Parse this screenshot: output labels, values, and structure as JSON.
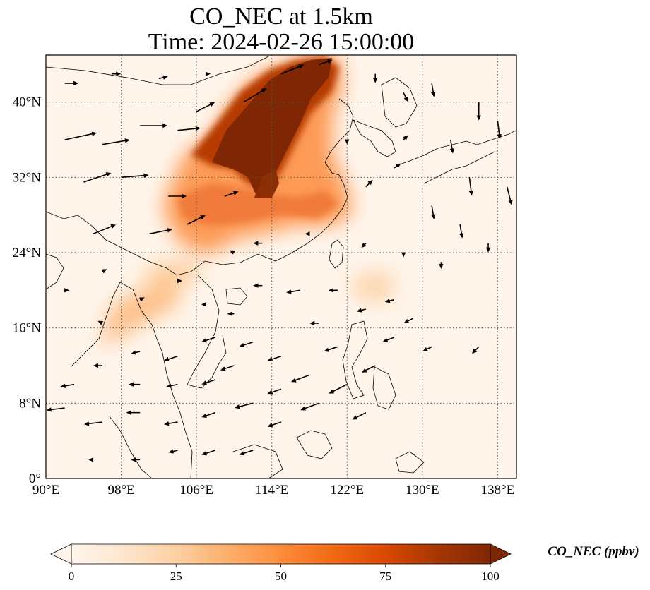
{
  "title": {
    "line1": "CO_NEC at 1.5km",
    "line2": "Time: 2024-02-26 15:00:00"
  },
  "map": {
    "extent": {
      "lon": [
        90,
        140
      ],
      "lat": [
        0,
        45
      ]
    },
    "lon_ticks": [
      {
        "value": 90,
        "label": "90°E"
      },
      {
        "value": 98,
        "label": "98°E"
      },
      {
        "value": 106,
        "label": "106°E"
      },
      {
        "value": 114,
        "label": "114°E"
      },
      {
        "value": 122,
        "label": "122°E"
      },
      {
        "value": 130,
        "label": "130°E"
      },
      {
        "value": 138,
        "label": "138°E"
      }
    ],
    "lat_ticks": [
      {
        "value": 0,
        "label": "0°"
      },
      {
        "value": 8,
        "label": "8°N"
      },
      {
        "value": 16,
        "label": "16°N"
      },
      {
        "value": 24,
        "label": "24°N"
      },
      {
        "value": 32,
        "label": "32°N"
      },
      {
        "value": 40,
        "label": "40°N"
      }
    ],
    "gridlines": true,
    "background_color": "#fff5eb",
    "line_color": "#000000"
  },
  "colorbar": {
    "label": "CO_NEC (ppbv)",
    "min": 0,
    "max": 100,
    "ticks": [
      0,
      25,
      50,
      75,
      100
    ],
    "extend": "both",
    "colormap": [
      "#fff5eb",
      "#fee6ce",
      "#fdd0a2",
      "#fdae6b",
      "#fd8d3c",
      "#f16913",
      "#d94801",
      "#a63603",
      "#7f2704"
    ]
  },
  "chart_data": {
    "type": "heatmap",
    "variable": "CO_NEC",
    "units": "ppbv",
    "concentration_regions": [
      {
        "lon": 115.5,
        "lat": 37.5,
        "value": 100
      },
      {
        "lon": 113.0,
        "lat": 34.5,
        "value": 100
      },
      {
        "lon": 117.5,
        "lat": 42.0,
        "value": 95
      },
      {
        "lon": 111.0,
        "lat": 37.0,
        "value": 90
      },
      {
        "lon": 116.0,
        "lat": 32.0,
        "value": 75
      },
      {
        "lon": 109.0,
        "lat": 31.0,
        "value": 50
      },
      {
        "lon": 114.0,
        "lat": 28.5,
        "value": 40
      },
      {
        "lon": 121.0,
        "lat": 30.0,
        "value": 30
      },
      {
        "lon": 106.0,
        "lat": 29.0,
        "value": 35
      },
      {
        "lon": 105.0,
        "lat": 24.0,
        "value": 18
      },
      {
        "lon": 96.0,
        "lat": 16.0,
        "value": 15
      },
      {
        "lon": 126.0,
        "lat": 21.5,
        "value": 12
      },
      {
        "lon": 100.0,
        "lat": 36.0,
        "value": 8
      },
      {
        "lon": 102.0,
        "lat": 19.0,
        "value": 10
      }
    ],
    "wind_vectors": [
      {
        "lon": 92,
        "lat": 36,
        "u": 7,
        "v": 1.5
      },
      {
        "lon": 96,
        "lat": 35.5,
        "u": 6,
        "v": 1
      },
      {
        "lon": 100,
        "lat": 37.5,
        "u": 6,
        "v": 0
      },
      {
        "lon": 104,
        "lat": 37,
        "u": 5,
        "v": 0.5
      },
      {
        "lon": 94,
        "lat": 31.5,
        "u": 6,
        "v": 2
      },
      {
        "lon": 98,
        "lat": 32,
        "u": 6,
        "v": 0.5
      },
      {
        "lon": 103,
        "lat": 30,
        "u": 4,
        "v": 0
      },
      {
        "lon": 95,
        "lat": 26,
        "u": 5,
        "v": 2
      },
      {
        "lon": 101,
        "lat": 26,
        "u": 5,
        "v": 1
      },
      {
        "lon": 105,
        "lat": 27,
        "u": 4,
        "v": 2
      },
      {
        "lon": 109,
        "lat": 30,
        "u": 3,
        "v": 1
      },
      {
        "lon": 106,
        "lat": 39,
        "u": 4,
        "v": 2
      },
      {
        "lon": 111,
        "lat": 40,
        "u": 5,
        "v": 3
      },
      {
        "lon": 115,
        "lat": 43,
        "u": 5,
        "v": 2
      },
      {
        "lon": 119,
        "lat": 44,
        "u": 3,
        "v": 1
      },
      {
        "lon": 125,
        "lat": 43,
        "u": 0,
        "v": -2
      },
      {
        "lon": 128,
        "lat": 41,
        "u": 1,
        "v": -2
      },
      {
        "lon": 131,
        "lat": 42,
        "u": 0.5,
        "v": -3
      },
      {
        "lon": 136,
        "lat": 40,
        "u": 0,
        "v": -4
      },
      {
        "lon": 138,
        "lat": 38,
        "u": 0.5,
        "v": -4
      },
      {
        "lon": 133,
        "lat": 36,
        "u": 0.5,
        "v": -3
      },
      {
        "lon": 135,
        "lat": 32,
        "u": 0.5,
        "v": -4
      },
      {
        "lon": 139,
        "lat": 31,
        "u": 1,
        "v": -4
      },
      {
        "lon": 131,
        "lat": 29,
        "u": 0.5,
        "v": -3
      },
      {
        "lon": 134,
        "lat": 27,
        "u": 0.5,
        "v": -3
      },
      {
        "lon": 137,
        "lat": 25,
        "u": 0,
        "v": -2
      },
      {
        "lon": 127,
        "lat": 33,
        "u": 1.5,
        "v": 1
      },
      {
        "lon": 124,
        "lat": 31,
        "u": 1.5,
        "v": 1.5
      },
      {
        "lon": 122,
        "lat": 36,
        "u": 0,
        "v": -1
      },
      {
        "lon": 128,
        "lat": 36,
        "u": 1,
        "v": 1
      },
      {
        "lon": 124,
        "lat": 25,
        "u": -1,
        "v": -1
      },
      {
        "lon": 128,
        "lat": 24,
        "u": 0,
        "v": -1
      },
      {
        "lon": 132,
        "lat": 23,
        "u": 0,
        "v": -1.5
      },
      {
        "lon": 118,
        "lat": 26,
        "u": -1,
        "v": 0
      },
      {
        "lon": 113,
        "lat": 25,
        "u": -2,
        "v": 0
      },
      {
        "lon": 110,
        "lat": 24,
        "u": -1,
        "v": 0.5
      },
      {
        "lon": 113,
        "lat": 20.5,
        "u": -2,
        "v": 0
      },
      {
        "lon": 117,
        "lat": 20,
        "u": -3,
        "v": -0.5
      },
      {
        "lon": 121,
        "lat": 20,
        "u": -2,
        "v": 0
      },
      {
        "lon": 124,
        "lat": 18,
        "u": -2,
        "v": -0.5
      },
      {
        "lon": 127,
        "lat": 19,
        "u": -2,
        "v": -0.5
      },
      {
        "lon": 129,
        "lat": 17,
        "u": -2,
        "v": -1
      },
      {
        "lon": 127,
        "lat": 15,
        "u": -2.5,
        "v": -1
      },
      {
        "lon": 136,
        "lat": 14,
        "u": -1.5,
        "v": -1.5
      },
      {
        "lon": 131,
        "lat": 14,
        "u": -2,
        "v": -1
      },
      {
        "lon": 125,
        "lat": 12,
        "u": -3,
        "v": -1.5
      },
      {
        "lon": 122,
        "lat": 10,
        "u": -4,
        "v": -2
      },
      {
        "lon": 118,
        "lat": 11,
        "u": -4,
        "v": -1.5
      },
      {
        "lon": 115,
        "lat": 13,
        "u": -3,
        "v": -1
      },
      {
        "lon": 112,
        "lat": 14.5,
        "u": -3,
        "v": -1
      },
      {
        "lon": 108,
        "lat": 15,
        "u": -3,
        "v": -1
      },
      {
        "lon": 104,
        "lat": 13,
        "u": -3,
        "v": -1
      },
      {
        "lon": 100,
        "lat": 13.5,
        "u": -2,
        "v": -0.5
      },
      {
        "lon": 96,
        "lat": 12,
        "u": -2,
        "v": 0
      },
      {
        "lon": 93,
        "lat": 10,
        "u": -3,
        "v": -0.5
      },
      {
        "lon": 92,
        "lat": 7.5,
        "u": -4,
        "v": -0.5
      },
      {
        "lon": 96,
        "lat": 6,
        "u": -4,
        "v": -0.5
      },
      {
        "lon": 100,
        "lat": 7,
        "u": -3,
        "v": 0
      },
      {
        "lon": 104,
        "lat": 6,
        "u": -3,
        "v": -0.5
      },
      {
        "lon": 108,
        "lat": 7,
        "u": -3,
        "v": -1
      },
      {
        "lon": 112,
        "lat": 8,
        "u": -4,
        "v": -1
      },
      {
        "lon": 115,
        "lat": 6,
        "u": -3,
        "v": -1
      },
      {
        "lon": 119,
        "lat": 8,
        "u": -4,
        "v": -1.5
      },
      {
        "lon": 124,
        "lat": 7,
        "u": -3,
        "v": -1.5
      },
      {
        "lon": 108,
        "lat": 3,
        "u": -3,
        "v": -1
      },
      {
        "lon": 104,
        "lat": 3,
        "u": -2,
        "v": -0.5
      },
      {
        "lon": 112,
        "lat": 3,
        "u": -3,
        "v": -1
      },
      {
        "lon": 100,
        "lat": 2,
        "u": -2,
        "v": 0
      },
      {
        "lon": 95,
        "lat": 2,
        "u": -1,
        "v": 0
      },
      {
        "lon": 100,
        "lat": 19,
        "u": 1,
        "v": 0.5
      },
      {
        "lon": 104,
        "lat": 21,
        "u": 1,
        "v": 0
      },
      {
        "lon": 96,
        "lat": 22,
        "u": 1,
        "v": 0.5
      },
      {
        "lon": 107,
        "lat": 18.5,
        "u": -1,
        "v": 0
      },
      {
        "lon": 110,
        "lat": 17.5,
        "u": -1.5,
        "v": 0
      },
      {
        "lon": 96,
        "lat": 16.5,
        "u": -1,
        "v": 0.5
      },
      {
        "lon": 92,
        "lat": 20,
        "u": 1,
        "v": 0
      },
      {
        "lon": 119,
        "lat": 16.5,
        "u": -2,
        "v": 0
      },
      {
        "lon": 121,
        "lat": 14,
        "u": -3,
        "v": -1
      },
      {
        "lon": 104,
        "lat": 10,
        "u": -2.5,
        "v": -0.5
      },
      {
        "lon": 108,
        "lat": 10.5,
        "u": -3,
        "v": -1
      },
      {
        "lon": 100,
        "lat": 10,
        "u": -2.5,
        "v": 0
      },
      {
        "lon": 115,
        "lat": 9.5,
        "u": -3,
        "v": -1
      },
      {
        "lon": 110,
        "lat": 12,
        "u": -3,
        "v": -1
      },
      {
        "lon": 92,
        "lat": 42,
        "u": 3,
        "v": 0
      },
      {
        "lon": 97,
        "lat": 43,
        "u": 2,
        "v": 0
      },
      {
        "lon": 102,
        "lat": 42.5,
        "u": 2,
        "v": 0.5
      },
      {
        "lon": 107,
        "lat": 43,
        "u": 1,
        "v": 0
      }
    ]
  }
}
